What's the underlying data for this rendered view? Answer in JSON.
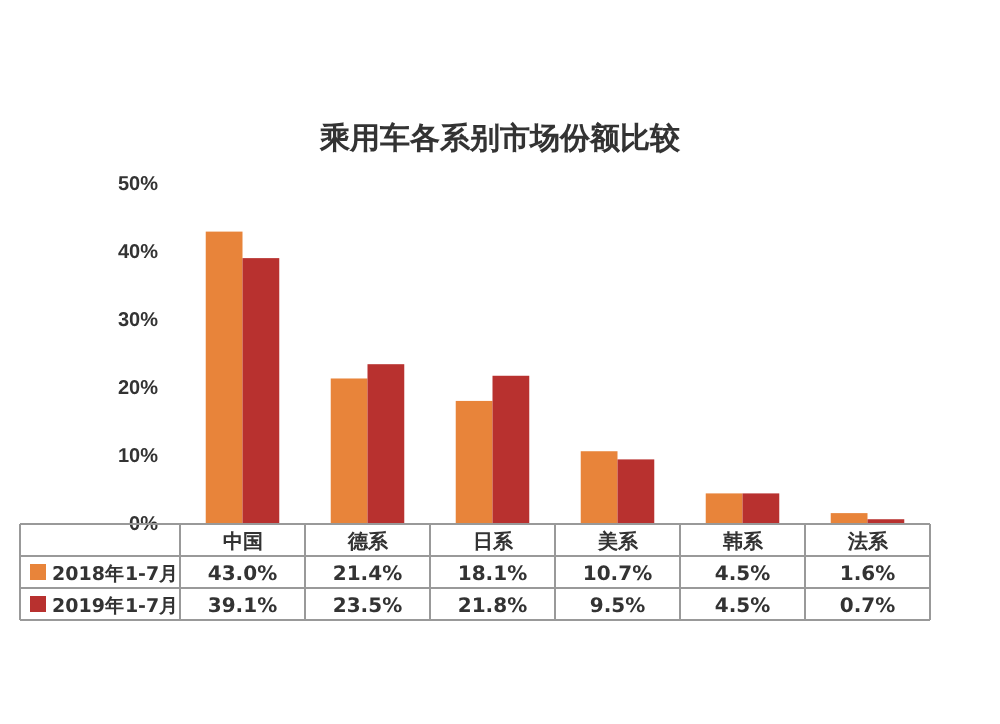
{
  "chart_data": {
    "type": "bar",
    "title": "乘用车各系别市场份额比较",
    "categories": [
      "中国",
      "德系",
      "日系",
      "美系",
      "韩系",
      "法系"
    ],
    "series": [
      {
        "name": "2018年1-7月",
        "color": "#e8843a",
        "values": [
          43.0,
          21.4,
          18.1,
          10.7,
          4.5,
          1.6
        ],
        "value_labels": [
          "43.0%",
          "21.4%",
          "18.1%",
          "10.7%",
          "4.5%",
          "1.6%"
        ]
      },
      {
        "name": "2019年1-7月",
        "color": "#b8312f",
        "values": [
          39.1,
          23.5,
          21.8,
          9.5,
          4.5,
          0.7
        ],
        "value_labels": [
          "39.1%",
          "23.5%",
          "21.8%",
          "9.5%",
          "4.5%",
          "0.7%"
        ]
      }
    ],
    "ylim": [
      0,
      50
    ],
    "yticks": [
      {
        "value": 0,
        "label": "0%"
      },
      {
        "value": 10,
        "label": "10%"
      },
      {
        "value": 20,
        "label": "20%"
      },
      {
        "value": 30,
        "label": "30%"
      },
      {
        "value": 40,
        "label": "40%"
      },
      {
        "value": 50,
        "label": "50%"
      }
    ],
    "legend": "bottom left"
  }
}
